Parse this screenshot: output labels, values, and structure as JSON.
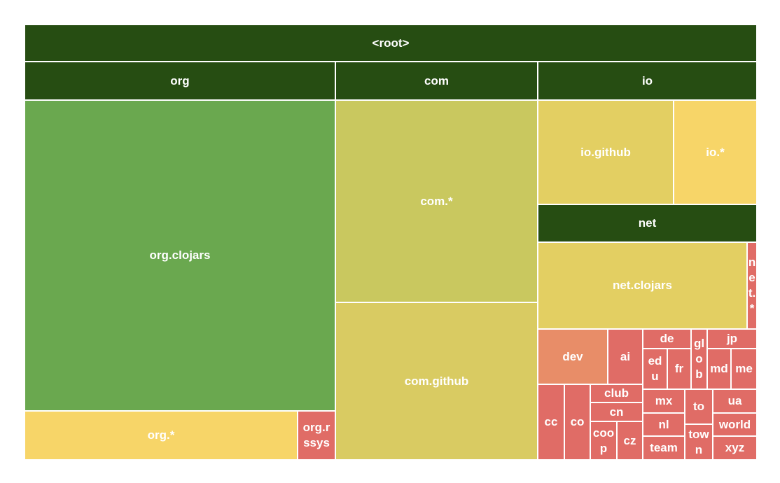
{
  "chart_data": {
    "type": "treemap",
    "title": "",
    "colors": {
      "header": "#264d12",
      "green": "#6aa84f",
      "olive": "#c9c85f",
      "yellow_olive": "#d9cb62",
      "yellow": "#e3cf62",
      "light_yellow": "#f7d568",
      "orange": "#e88d68",
      "red": "#e06c66"
    },
    "root": "<root>",
    "groups": [
      {
        "name": "org",
        "children": [
          "org.clojars",
          "org.*",
          "org.rssys"
        ]
      },
      {
        "name": "com",
        "children": [
          "com.*",
          "com.github"
        ]
      },
      {
        "name": "io",
        "children": [
          "io.github",
          "io.*"
        ]
      },
      {
        "name": "net",
        "children": [
          "net.clojars",
          "net.*"
        ]
      }
    ],
    "leaves": [
      "dev",
      "ai",
      "de",
      "edu",
      "fr",
      "glob",
      "jp",
      "md",
      "me",
      "cc",
      "co",
      "club",
      "cn",
      "coop",
      "cz",
      "mx",
      "nl",
      "team",
      "to",
      "town",
      "ua",
      "world",
      "xyz"
    ],
    "cells": [
      {
        "key": "root",
        "label": "<root>",
        "color": "header"
      },
      {
        "key": "org",
        "label": "org",
        "color": "header"
      },
      {
        "key": "com",
        "label": "com",
        "color": "header"
      },
      {
        "key": "io",
        "label": "io",
        "color": "header"
      },
      {
        "key": "org_clojars",
        "label": "org.clojars",
        "color": "green"
      },
      {
        "key": "org_star",
        "label": "org.*",
        "color": "light_yellow"
      },
      {
        "key": "org_rssys",
        "label": "org.rssys",
        "color": "red"
      },
      {
        "key": "com_star",
        "label": "com.*",
        "color": "olive"
      },
      {
        "key": "com_github",
        "label": "com.github",
        "color": "yellow_olive"
      },
      {
        "key": "io_github",
        "label": "io.github",
        "color": "yellow"
      },
      {
        "key": "io_star",
        "label": "io.*",
        "color": "light_yellow"
      },
      {
        "key": "net",
        "label": "net",
        "color": "header"
      },
      {
        "key": "net_clojars",
        "label": "net.clojars",
        "color": "yellow"
      },
      {
        "key": "net_star",
        "label": "net.*",
        "color": "red"
      },
      {
        "key": "dev",
        "label": "dev",
        "color": "orange"
      },
      {
        "key": "ai",
        "label": "ai",
        "color": "red"
      },
      {
        "key": "de",
        "label": "de",
        "color": "red"
      },
      {
        "key": "edu",
        "label": "edu",
        "color": "red"
      },
      {
        "key": "fr",
        "label": "fr",
        "color": "red"
      },
      {
        "key": "glob",
        "label": "glob",
        "color": "red"
      },
      {
        "key": "jp",
        "label": "jp",
        "color": "red"
      },
      {
        "key": "md",
        "label": "md",
        "color": "red"
      },
      {
        "key": "me",
        "label": "me",
        "color": "red"
      },
      {
        "key": "cc",
        "label": "cc",
        "color": "red"
      },
      {
        "key": "co",
        "label": "co",
        "color": "red"
      },
      {
        "key": "club",
        "label": "club",
        "color": "red"
      },
      {
        "key": "cn",
        "label": "cn",
        "color": "red"
      },
      {
        "key": "coop",
        "label": "coop",
        "color": "red"
      },
      {
        "key": "cz",
        "label": "cz",
        "color": "red"
      },
      {
        "key": "mx",
        "label": "mx",
        "color": "red"
      },
      {
        "key": "nl",
        "label": "nl",
        "color": "red"
      },
      {
        "key": "team",
        "label": "team",
        "color": "red"
      },
      {
        "key": "to",
        "label": "to",
        "color": "red"
      },
      {
        "key": "town",
        "label": "town",
        "color": "red"
      },
      {
        "key": "ua",
        "label": "ua",
        "color": "red"
      },
      {
        "key": "world",
        "label": "world",
        "color": "red"
      },
      {
        "key": "xyz",
        "label": "xyz",
        "color": "red"
      }
    ]
  }
}
